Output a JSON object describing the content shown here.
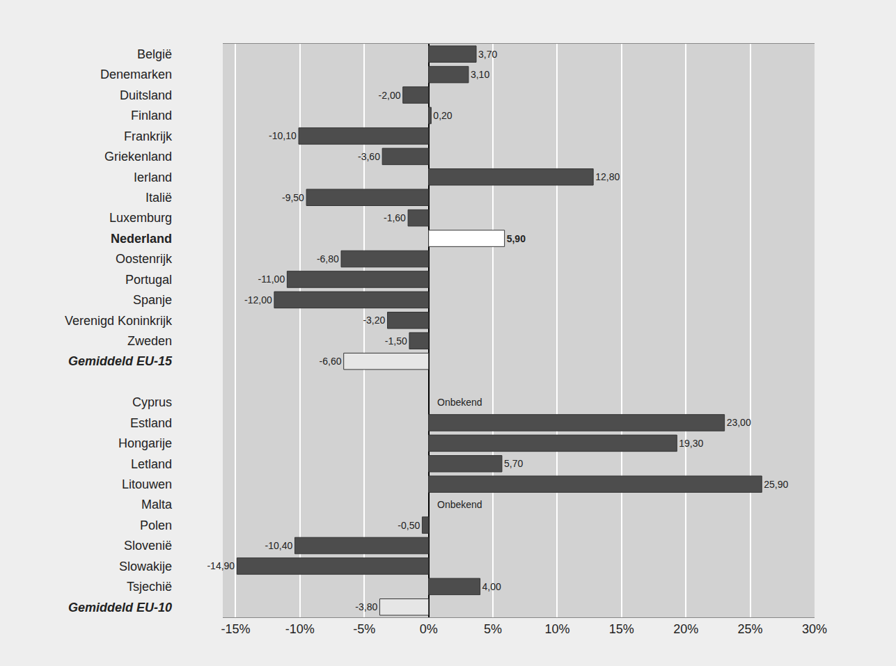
{
  "chart_data": {
    "type": "bar",
    "orientation": "horizontal",
    "categories": [
      "België",
      "Denemarken",
      "Duitsland",
      "Finland",
      "Frankrijk",
      "Griekenland",
      "Ierland",
      "Italië",
      "Luxemburg",
      "Nederland",
      "Oostenrijk",
      "Portugal",
      "Spanje",
      "Verenigd Koninkrijk",
      "Zweden",
      "Gemiddeld EU-15",
      null,
      "Cyprus",
      "Estland",
      "Hongarije",
      "Letland",
      "Litouwen",
      "Malta",
      "Polen",
      "Slovenië",
      "Slowakije",
      "Tsjechië",
      "Gemiddeld EU-10"
    ],
    "values": [
      3.7,
      3.1,
      -2.0,
      0.2,
      -10.1,
      -3.6,
      12.8,
      -9.5,
      -1.6,
      5.9,
      -6.8,
      -11.0,
      -12.0,
      -3.2,
      -1.5,
      -6.6,
      null,
      null,
      23.0,
      19.3,
      5.7,
      25.9,
      null,
      -0.5,
      -10.4,
      -14.9,
      4.0,
      -3.8
    ],
    "value_labels": [
      "3,70",
      "3,10",
      "-2,00",
      "0,20",
      "-10,10",
      "-3,60",
      "12,80",
      "-9,50",
      "-1,60",
      "5,90",
      "-6,80",
      "-11,00",
      "-12,00",
      "-3,20",
      "-1,50",
      "-6,60",
      null,
      "Onbekend",
      "23,00",
      "19,30",
      "5,70",
      "25,90",
      "Onbekend",
      "-0,50",
      "-10,40",
      "-14,90",
      "4,00",
      "-3,80"
    ],
    "color": "#4d4d4d",
    "colors": [
      "#4d4d4d",
      "#4d4d4d",
      "#4d4d4d",
      "#4d4d4d",
      "#4d4d4d",
      "#4d4d4d",
      "#4d4d4d",
      "#4d4d4d",
      "#4d4d4d",
      "#ffffff",
      "#4d4d4d",
      "#4d4d4d",
      "#4d4d4d",
      "#4d4d4d",
      "#4d4d4d",
      "#e6e6e6",
      null,
      "#4d4d4d",
      "#4d4d4d",
      "#4d4d4d",
      "#4d4d4d",
      "#4d4d4d",
      "#4d4d4d",
      "#4d4d4d",
      "#4d4d4d",
      "#4d4d4d",
      "#4d4d4d",
      "#e6e6e6"
    ],
    "xlim": [
      -16,
      30
    ],
    "xticks": [
      {
        "value": -15,
        "label": "-15%"
      },
      {
        "value": -10,
        "label": "-10%"
      },
      {
        "value": -5,
        "label": "-5%"
      },
      {
        "value": 0,
        "label": "0%"
      },
      {
        "value": 5,
        "label": "5%"
      },
      {
        "value": 10,
        "label": "10%"
      },
      {
        "value": 15,
        "label": "15%"
      },
      {
        "value": 20,
        "label": "20%"
      },
      {
        "value": 25,
        "label": "25%"
      },
      {
        "value": 30,
        "label": "30%"
      }
    ],
    "grid": true,
    "data_labels": true
  }
}
